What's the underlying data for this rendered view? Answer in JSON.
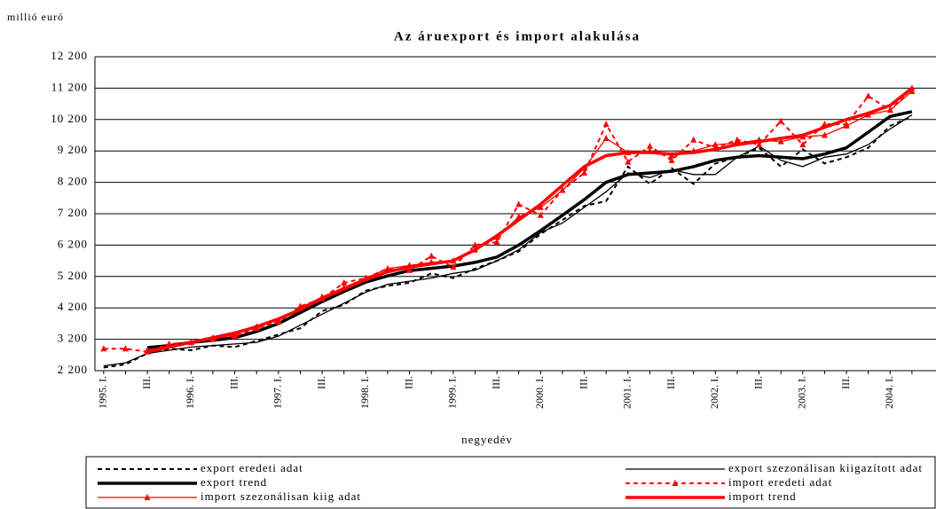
{
  "chart_data": {
    "type": "line",
    "title": "Az áruexport és import alakulása",
    "y_label": "millió euró",
    "x_label": "negyedév",
    "categories": [
      "1995. I.",
      null,
      "III.",
      null,
      "1996. I.",
      null,
      "III.",
      null,
      "1997. I.",
      null,
      "III.",
      null,
      "1998. I.",
      null,
      "III.",
      null,
      "1999. I.",
      null,
      "III.",
      null,
      "2000. I.",
      null,
      "III.",
      null,
      "2001. I.",
      null,
      "III.",
      null,
      "2002. I.",
      null,
      "III.",
      null,
      "2003. I.",
      null,
      "III.",
      null,
      "2004. I.",
      null
    ],
    "ylim": [
      2200,
      12200
    ],
    "yticks": [
      {
        "value": 2200,
        "label": "2 200"
      },
      {
        "value": 3200,
        "label": "3 200"
      },
      {
        "value": 4200,
        "label": "4 200"
      },
      {
        "value": 5200,
        "label": "5 200"
      },
      {
        "value": 6200,
        "label": "6 200"
      },
      {
        "value": 7200,
        "label": "7 200"
      },
      {
        "value": 8200,
        "label": "8 200"
      },
      {
        "value": 9200,
        "label": "9 200"
      },
      {
        "value": 10200,
        "label": "10 200"
      },
      {
        "value": 11200,
        "label": "11 200"
      },
      {
        "value": 12200,
        "label": "12 200"
      }
    ],
    "grid": true,
    "legend": "bottom",
    "series": [
      {
        "name": "export eredeti adat",
        "color": "#000000",
        "style": "dashed",
        "width": 2,
        "marker": "none",
        "values": [
          2300,
          2400,
          2750,
          2900,
          2850,
          3000,
          2950,
          3150,
          3350,
          3550,
          4100,
          4300,
          4750,
          4900,
          5000,
          5300,
          5150,
          5450,
          5700,
          6000,
          6550,
          7000,
          7450,
          7600,
          8700,
          8150,
          8650,
          8150,
          8800,
          9000,
          9300,
          8700,
          9250,
          8800,
          9000,
          9300,
          10000,
          10300
        ]
      },
      {
        "name": "export szezonálisan kiigazított adat",
        "color": "#000000",
        "style": "solid",
        "width": 1.3,
        "marker": "none",
        "values": [
          2350,
          2450,
          2750,
          2850,
          2950,
          3000,
          3050,
          3100,
          3300,
          3650,
          4000,
          4350,
          4700,
          4950,
          5050,
          5150,
          5300,
          5400,
          5700,
          6050,
          6600,
          6900,
          7400,
          7900,
          8500,
          8350,
          8600,
          8450,
          8450,
          9000,
          9350,
          8900,
          8700,
          9000,
          9100,
          9400,
          9900,
          10350
        ]
      },
      {
        "name": "export trend",
        "color": "#000000",
        "style": "solid",
        "width": 3.5,
        "marker": "none",
        "values": [
          null,
          null,
          2935,
          3000,
          3100,
          3170,
          3250,
          3450,
          3700,
          4050,
          4400,
          4720,
          5020,
          5220,
          5390,
          5460,
          5530,
          5650,
          5820,
          6200,
          6660,
          7150,
          7650,
          8200,
          8450,
          8500,
          8550,
          8700,
          8900,
          9000,
          9050,
          9000,
          8950,
          9100,
          9300,
          9800,
          10300,
          10450
        ]
      },
      {
        "name": "import eredeti adat",
        "color": "#ff0000",
        "style": "dashed",
        "width": 2,
        "marker": "triangle",
        "values": [
          2900,
          2900,
          2800,
          3050,
          3100,
          3250,
          3300,
          3550,
          3750,
          4250,
          4500,
          5000,
          5150,
          5450,
          5400,
          5850,
          5500,
          6200,
          6300,
          7500,
          7150,
          7950,
          8500,
          10050,
          8850,
          9350,
          8900,
          9550,
          9300,
          9550,
          9400,
          10150,
          9400,
          10050,
          10050,
          10950,
          10500,
          11200
        ]
      },
      {
        "name": "import szezonálisan kiig adat",
        "color": "#ff0000",
        "style": "solid",
        "width": 1.3,
        "marker": "triangle",
        "values": [
          null,
          null,
          2850,
          3000,
          3100,
          3200,
          3350,
          3600,
          3800,
          4200,
          4550,
          4850,
          5150,
          5450,
          5550,
          5650,
          5700,
          6050,
          6450,
          7100,
          7400,
          7950,
          8650,
          9600,
          9150,
          9200,
          9050,
          9200,
          9400,
          9450,
          9550,
          9500,
          9650,
          9700,
          10000,
          10350,
          10500,
          11100
        ]
      },
      {
        "name": "import trend",
        "color": "#ff0000",
        "style": "solid",
        "width": 3.5,
        "marker": "none",
        "values": [
          null,
          null,
          2800,
          2950,
          3100,
          3250,
          3400,
          3600,
          3850,
          4150,
          4500,
          4800,
          5100,
          5350,
          5500,
          5600,
          5700,
          6050,
          6500,
          7000,
          7500,
          8100,
          8700,
          9050,
          9150,
          9150,
          9100,
          9150,
          9250,
          9400,
          9500,
          9600,
          9700,
          9950,
          10200,
          10400,
          10650,
          11200
        ]
      }
    ]
  }
}
